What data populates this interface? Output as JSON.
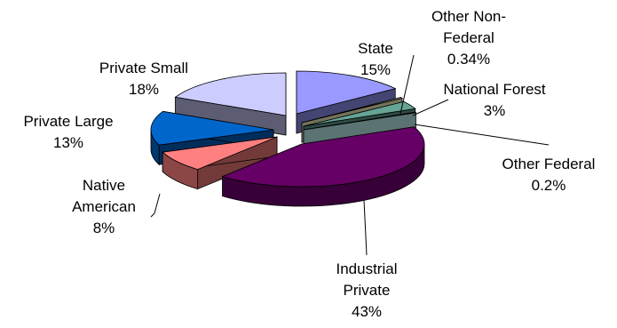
{
  "chart_data": {
    "type": "pie",
    "style": "3d-exploded",
    "slices": [
      {
        "name": "State",
        "value": 15,
        "label": "15%",
        "color": "#9999ff"
      },
      {
        "name": "Other Non-Federal",
        "value": 0.34,
        "label": "0.34%",
        "color": "#ffffcc"
      },
      {
        "name": "National Forest",
        "value": 3,
        "label": "3%",
        "color": "#66a595"
      },
      {
        "name": "Other Federal",
        "value": 0.2,
        "label": "0.2%",
        "color": "#ccffff"
      },
      {
        "name": "Industrial Private",
        "value": 43,
        "label": "43%",
        "color": "#660066"
      },
      {
        "name": "Native American",
        "value": 8,
        "label": "8%",
        "color": "#ff8080"
      },
      {
        "name": "Private Large",
        "value": 13,
        "label": "13%",
        "color": "#0066cc"
      },
      {
        "name": "Private Small",
        "value": 18,
        "label": "18%",
        "color": "#ccccff"
      }
    ],
    "labels": [
      {
        "lines": [
          "State",
          "15%"
        ]
      },
      {
        "lines": [
          "Other Non-",
          "Federal",
          "0.34%"
        ]
      },
      {
        "lines": [
          "National Forest",
          "3%"
        ]
      },
      {
        "lines": [
          "Other Federal",
          "0.2%"
        ]
      },
      {
        "lines": [
          "Industrial",
          "Private",
          "43%"
        ]
      },
      {
        "lines": [
          "Native",
          "American",
          "8%"
        ]
      },
      {
        "lines": [
          "Private Large",
          "13%"
        ]
      },
      {
        "lines": [
          "Private Small",
          "18%"
        ]
      }
    ]
  }
}
